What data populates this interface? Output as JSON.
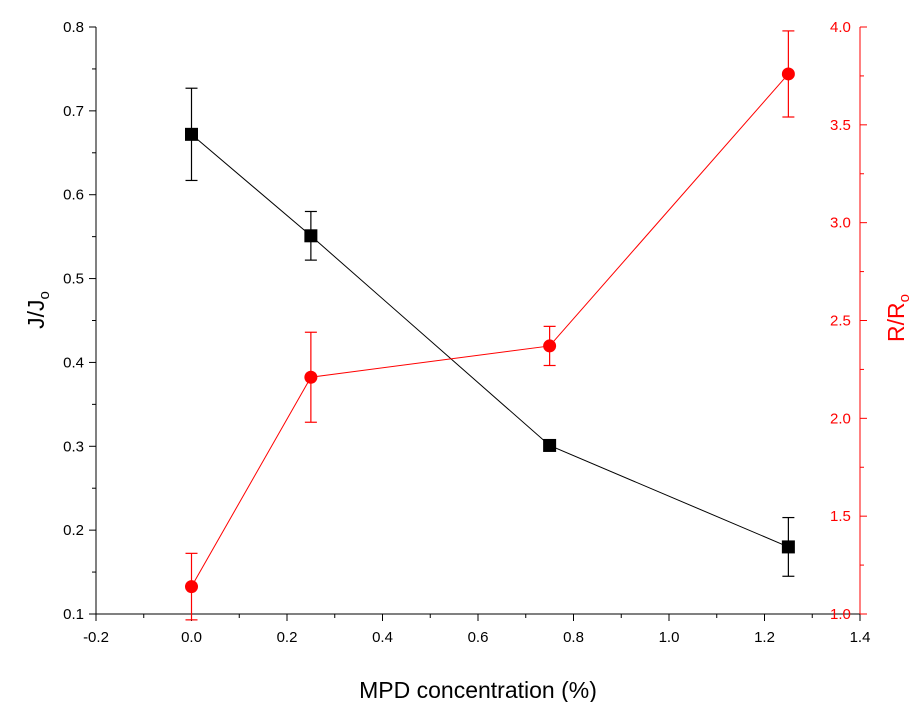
{
  "chart_data": {
    "type": "line",
    "xlabel": "MPD concentration (%)",
    "ylabel_left": {
      "main": "J/J",
      "sub": "o"
    },
    "ylabel_right": {
      "main": "R/R",
      "sub": "o"
    },
    "xlim": [
      -0.2,
      1.4
    ],
    "ylim_left": [
      0.1,
      0.8
    ],
    "ylim_right": [
      1.0,
      4.0
    ],
    "x_ticks": [
      "-0.2",
      "0.0",
      "0.2",
      "0.4",
      "0.6",
      "0.8",
      "1.0",
      "1.2",
      "1.4"
    ],
    "y_left_ticks": [
      "0.1",
      "0.2",
      "0.3",
      "0.4",
      "0.5",
      "0.6",
      "0.7",
      "0.8"
    ],
    "y_right_ticks": [
      "1.0",
      "1.5",
      "2.0",
      "2.5",
      "3.0",
      "3.5",
      "4.0"
    ],
    "series": [
      {
        "axis": "left",
        "marker": "square",
        "color": "#000000",
        "x": [
          0.0,
          0.25,
          0.75,
          1.25
        ],
        "y": [
          0.672,
          0.551,
          0.301,
          0.18
        ],
        "err": [
          0.055,
          0.029,
          0.005,
          0.035
        ]
      },
      {
        "axis": "right",
        "marker": "circle",
        "color": "#ff0000",
        "x": [
          0.0,
          0.25,
          0.75,
          1.25
        ],
        "y": [
          1.14,
          2.21,
          2.37,
          3.76
        ],
        "err": [
          0.17,
          0.23,
          0.1,
          0.22
        ]
      }
    ],
    "grid": false,
    "legend": "none"
  }
}
